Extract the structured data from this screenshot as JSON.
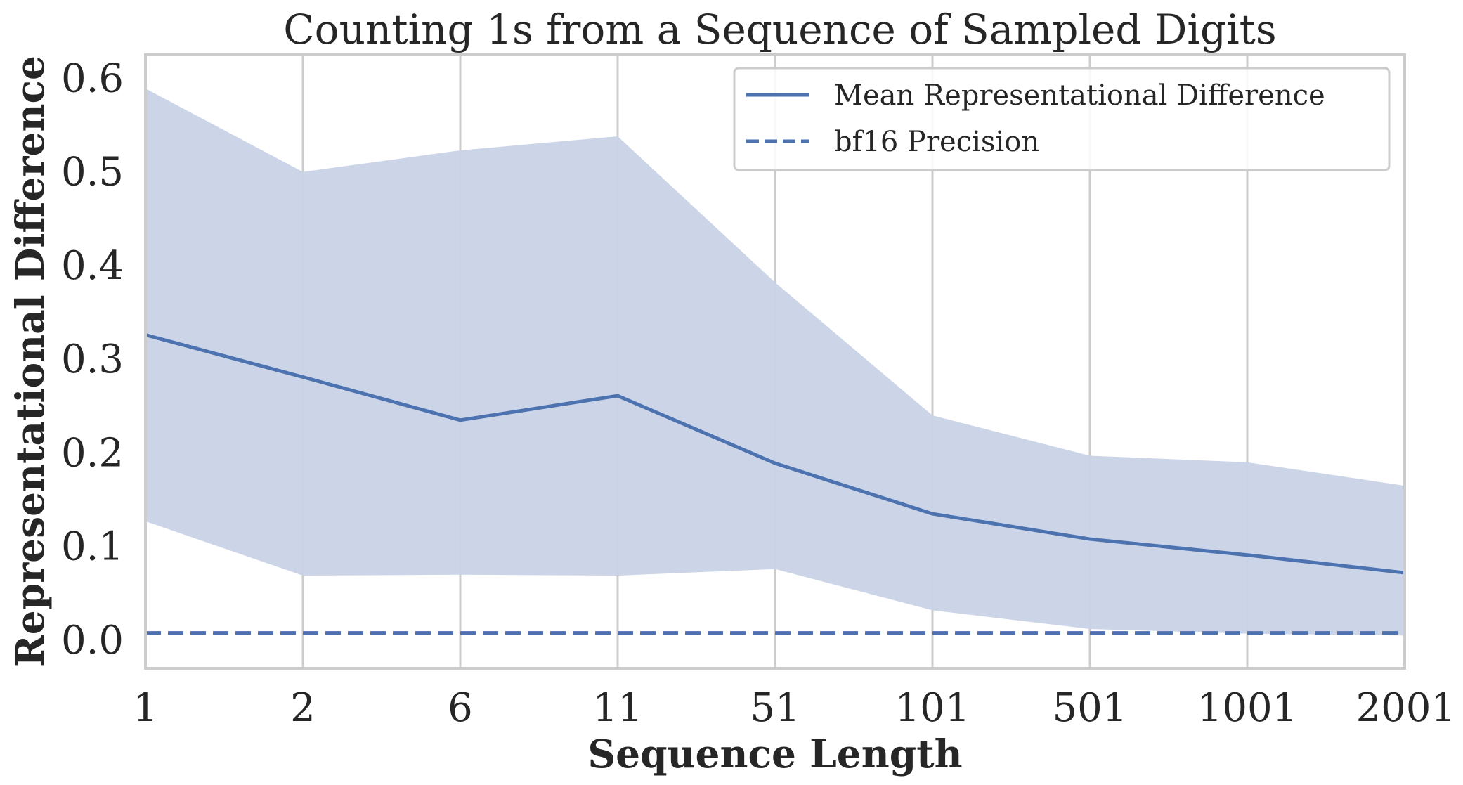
{
  "chart_data": {
    "type": "line",
    "title": "Counting 1s from a Sequence of Sampled Digits",
    "xlabel": "Sequence Length",
    "ylabel": "Representational Difference",
    "categories": [
      "1",
      "2",
      "6",
      "11",
      "51",
      "101",
      "501",
      "1001",
      "2001"
    ],
    "yticks": [
      "0.0",
      "0.1",
      "0.2",
      "0.3",
      "0.4",
      "0.5",
      "0.6"
    ],
    "ylim": [
      -0.03,
      0.625
    ],
    "grid": "vertical",
    "legend_position": "top-right",
    "series": [
      {
        "name": "Mean Representational Difference",
        "style": "solid",
        "color": "#4c72b0",
        "values": [
          0.326,
          0.281,
          0.235,
          0.261,
          0.189,
          0.135,
          0.108,
          0.091,
          0.072
        ]
      },
      {
        "name": "bf16 Precision",
        "style": "dashed",
        "color": "#4c72b0",
        "values": [
          0.0078,
          0.0078,
          0.0078,
          0.0078,
          0.0078,
          0.0078,
          0.0078,
          0.0078,
          0.0078
        ]
      }
    ],
    "band": {
      "color": "#c9d3e6",
      "upper": [
        0.589,
        0.5,
        0.523,
        0.538,
        0.382,
        0.24,
        0.197,
        0.19,
        0.165
      ],
      "lower": [
        0.127,
        0.069,
        0.07,
        0.069,
        0.076,
        0.032,
        0.012,
        0.007,
        0.005
      ]
    }
  }
}
